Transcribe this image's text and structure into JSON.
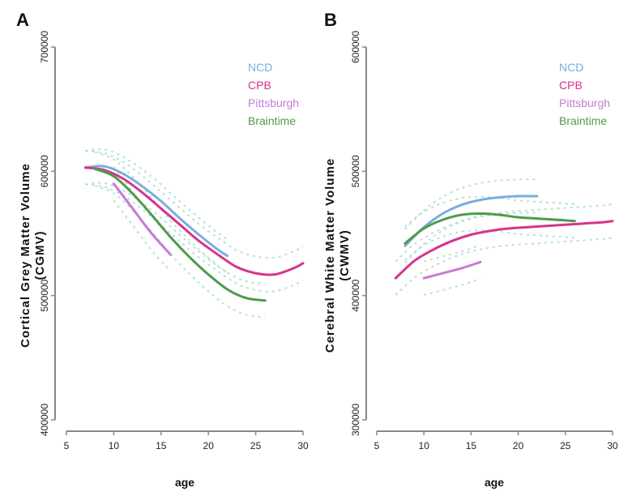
{
  "chart_data": [
    {
      "type": "line",
      "panel_label": "A",
      "ylabel": "Cortical Grey Matter Volume (CGMV)",
      "xlabel": "age",
      "xlim": [
        5,
        30
      ],
      "ylim": [
        400000,
        700000
      ],
      "xticks": [
        "5",
        "10",
        "15",
        "20",
        "25",
        "30"
      ],
      "yticks": [
        "400000",
        "500000",
        "600000",
        "700000"
      ],
      "legend_position": "top-right",
      "legend": [
        "NCD",
        "CPB",
        "Pittsburgh",
        "Braintime"
      ],
      "colors": {
        "NCD": "#7aaedd",
        "CPB": "#d6338e",
        "Pittsburgh": "#c77ad6",
        "Braintime": "#4f9a4a",
        "ci": "#9cd8c2"
      },
      "series": [
        {
          "name": "NCD",
          "x": [
            7,
            9,
            11,
            13,
            15,
            17,
            19,
            21,
            22
          ],
          "y": [
            603000,
            604000,
            598000,
            588000,
            576000,
            562000,
            549000,
            537000,
            532000
          ]
        },
        {
          "name": "CPB",
          "x": [
            7,
            9,
            11,
            13,
            15,
            17,
            19,
            21,
            23,
            25,
            27,
            29,
            30
          ],
          "y": [
            603000,
            601000,
            594000,
            583000,
            570000,
            557000,
            544000,
            533000,
            523000,
            518000,
            517000,
            522000,
            526000
          ]
        },
        {
          "name": "Pittsburgh",
          "x": [
            10,
            12,
            14,
            16
          ],
          "y": [
            590000,
            570000,
            550000,
            533000
          ]
        },
        {
          "name": "Braintime",
          "x": [
            8,
            10,
            12,
            14,
            16,
            18,
            20,
            22,
            24,
            26
          ],
          "y": [
            602000,
            596000,
            582000,
            565000,
            547000,
            531000,
            517000,
            505000,
            498000,
            496000
          ]
        }
      ]
    },
    {
      "type": "line",
      "panel_label": "B",
      "ylabel": "Cerebral White Matter Volume (CWMV)",
      "xlabel": "age",
      "xlim": [
        5,
        30
      ],
      "ylim": [
        300000,
        600000
      ],
      "xticks": [
        "5",
        "10",
        "15",
        "20",
        "25",
        "30"
      ],
      "yticks": [
        "300000",
        "400000",
        "500000",
        "600000"
      ],
      "legend_position": "top-right",
      "legend": [
        "NCD",
        "CPB",
        "Pittsburgh",
        "Braintime"
      ],
      "colors": {
        "NCD": "#7aaedd",
        "CPB": "#d6338e",
        "Pittsburgh": "#c77ad6",
        "Braintime": "#4f9a4a",
        "ci": "#9cd8c2"
      },
      "series": [
        {
          "name": "NCD",
          "x": [
            8,
            10,
            12,
            14,
            16,
            18,
            20,
            22
          ],
          "y": [
            440000,
            455000,
            466000,
            473000,
            477000,
            479000,
            480000,
            480000
          ]
        },
        {
          "name": "CPB",
          "x": [
            7,
            9,
            11,
            13,
            15,
            17,
            19,
            21,
            23,
            25,
            27,
            29,
            30
          ],
          "y": [
            414000,
            428000,
            437000,
            444000,
            449000,
            452000,
            454000,
            455000,
            456000,
            457000,
            458000,
            459000,
            460000
          ]
        },
        {
          "name": "Pittsburgh",
          "x": [
            10,
            12,
            14,
            16
          ],
          "y": [
            414000,
            418000,
            422000,
            427000
          ]
        },
        {
          "name": "Braintime",
          "x": [
            8,
            10,
            12,
            14,
            16,
            18,
            20,
            22,
            24,
            26
          ],
          "y": [
            442000,
            454000,
            461000,
            465000,
            466000,
            465000,
            463000,
            462000,
            461000,
            460000
          ]
        }
      ]
    }
  ]
}
